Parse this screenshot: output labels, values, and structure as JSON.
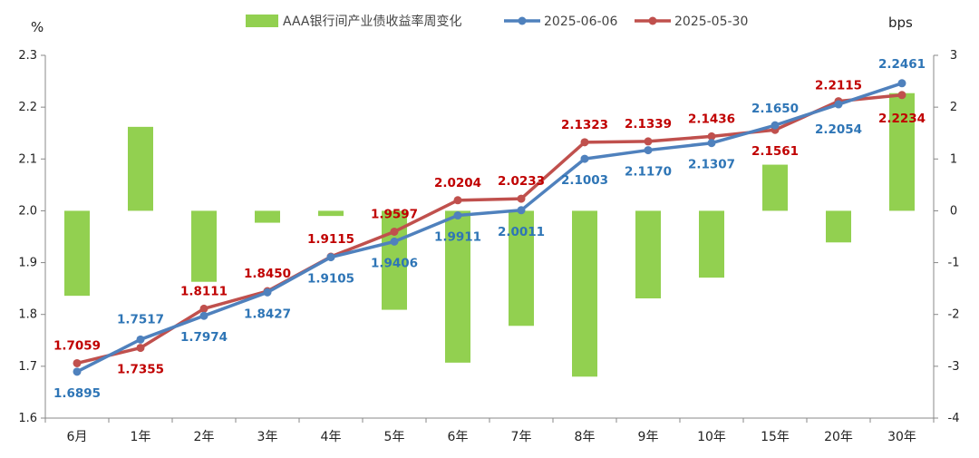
{
  "chart_data": {
    "type": "bar+line",
    "categories": [
      "6月",
      "1年",
      "2年",
      "3年",
      "4年",
      "5年",
      "6年",
      "7年",
      "8年",
      "9年",
      "10年",
      "15年",
      "20年",
      "30年"
    ],
    "left_axis": {
      "unit": "%",
      "ylim": [
        1.6,
        2.3
      ],
      "ticks": [
        "1.6",
        "1.7",
        "1.8",
        "1.9",
        "2.0",
        "2.1",
        "2.2",
        "2.3"
      ],
      "tick_values": [
        1.6,
        1.7,
        1.8,
        1.9,
        2.0,
        2.1,
        2.2,
        2.3
      ]
    },
    "right_axis": {
      "unit": "bps",
      "ylim": [
        -4,
        3
      ],
      "ticks": [
        "-4",
        "-3",
        "-2",
        "-1",
        "0",
        "1",
        "2",
        "3"
      ],
      "tick_values": [
        -4,
        -3,
        -2,
        -1,
        0,
        1,
        2,
        3
      ]
    },
    "series": [
      {
        "name": "AAA银行间产业债收益率周变化",
        "type": "bar",
        "axis": "right",
        "color": "#92D050",
        "values": [
          -1.64,
          1.62,
          -1.37,
          -0.23,
          -0.1,
          -1.91,
          -2.93,
          -2.22,
          -3.2,
          -1.69,
          -1.29,
          0.89,
          -0.61,
          2.27
        ]
      },
      {
        "name": "2025-06-06",
        "type": "line",
        "axis": "left",
        "color": "#4F81BD",
        "label_color": "#2E75B6",
        "values": [
          1.6895,
          1.7517,
          1.7974,
          1.8427,
          1.9105,
          1.9406,
          1.9911,
          2.0011,
          2.1003,
          2.117,
          2.1307,
          2.165,
          2.2054,
          2.2461
        ],
        "labels": [
          "1.6895",
          "1.7517",
          "1.7974",
          "1.8427",
          "1.9105",
          "1.9406",
          "1.9911",
          "2.0011",
          "2.1003",
          "2.1170",
          "2.1307",
          "2.1650",
          "2.2054",
          "2.2461"
        ]
      },
      {
        "name": "2025-05-30",
        "type": "line",
        "axis": "left",
        "color": "#C0504D",
        "label_color": "#C00000",
        "values": [
          1.7059,
          1.7355,
          1.8111,
          1.845,
          1.9115,
          1.9597,
          2.0204,
          2.0233,
          2.1323,
          2.1339,
          2.1436,
          2.1561,
          2.2115,
          2.2234
        ],
        "labels": [
          "1.7059",
          "1.7355",
          "1.8111",
          "1.8450",
          "1.9115",
          "1.9597",
          "2.0204",
          "2.0233",
          "2.1323",
          "2.1339",
          "2.1436",
          "2.1561",
          "2.2115",
          "2.2234"
        ]
      }
    ],
    "legend_position": "top-center",
    "grid": false
  }
}
